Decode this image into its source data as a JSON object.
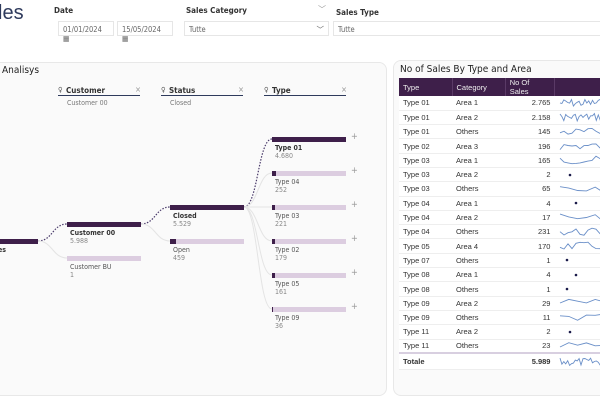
{
  "page_title": "les",
  "filters": {
    "date_label": "Date",
    "date_from": "01/01/2024",
    "date_to": "15/05/2024",
    "category_label": "Sales Category",
    "category_value": "Tutte",
    "type_label": "Sales Type",
    "type_value": "Tutte"
  },
  "tree": {
    "title": "Analisys",
    "levels": [
      {
        "label": "Customer",
        "selected": "Customer 00"
      },
      {
        "label": "Status",
        "selected": "Closed"
      },
      {
        "label": "Type",
        "selected": ""
      }
    ],
    "root": {
      "label": "es"
    },
    "customers": [
      {
        "label": "Customer 00",
        "value": "5.988",
        "n": 5988
      },
      {
        "label": "Customer BU",
        "value": "1",
        "n": 1
      }
    ],
    "status": [
      {
        "label": "Closed",
        "value": "5.529",
        "n": 5529
      },
      {
        "label": "Open",
        "value": "459",
        "n": 459
      }
    ],
    "types": [
      {
        "label": "Type 01",
        "value": "4.680",
        "n": 4680
      },
      {
        "label": "Type 04",
        "value": "252",
        "n": 252
      },
      {
        "label": "Type 03",
        "value": "221",
        "n": 221
      },
      {
        "label": "Type 02",
        "value": "179",
        "n": 179
      },
      {
        "label": "Type 05",
        "value": "161",
        "n": 161
      },
      {
        "label": "Type 09",
        "value": "36",
        "n": 36
      }
    ]
  },
  "table": {
    "title": "No of Sales By Type and Area",
    "headers": [
      "Type",
      "Category",
      "No Of Sales",
      ""
    ],
    "rows": [
      [
        "Type 01",
        "Area 1",
        "2.765"
      ],
      [
        "Type 01",
        "Area 2",
        "2.158"
      ],
      [
        "Type 01",
        "Others",
        "145"
      ],
      [
        "Type 02",
        "Area 3",
        "196"
      ],
      [
        "Type 03",
        "Area 1",
        "165"
      ],
      [
        "Type 03",
        "Area 2",
        "2"
      ],
      [
        "Type 03",
        "Others",
        "65"
      ],
      [
        "Type 04",
        "Area 1",
        "4"
      ],
      [
        "Type 04",
        "Area 2",
        "17"
      ],
      [
        "Type 04",
        "Others",
        "231"
      ],
      [
        "Type 05",
        "Area 4",
        "170"
      ],
      [
        "Type 07",
        "Others",
        "1"
      ],
      [
        "Type 08",
        "Area 1",
        "4"
      ],
      [
        "Type 08",
        "Others",
        "1"
      ],
      [
        "Type 09",
        "Area 2",
        "29"
      ],
      [
        "Type 09",
        "Others",
        "11"
      ],
      [
        "Type 11",
        "Area 2",
        "2"
      ],
      [
        "Type 11",
        "Others",
        "23"
      ]
    ],
    "total": {
      "label": "Totale",
      "value": "5.989"
    },
    "colors": {
      "header": "#3e1f4a",
      "sparkline": "#6a8fc8"
    }
  }
}
